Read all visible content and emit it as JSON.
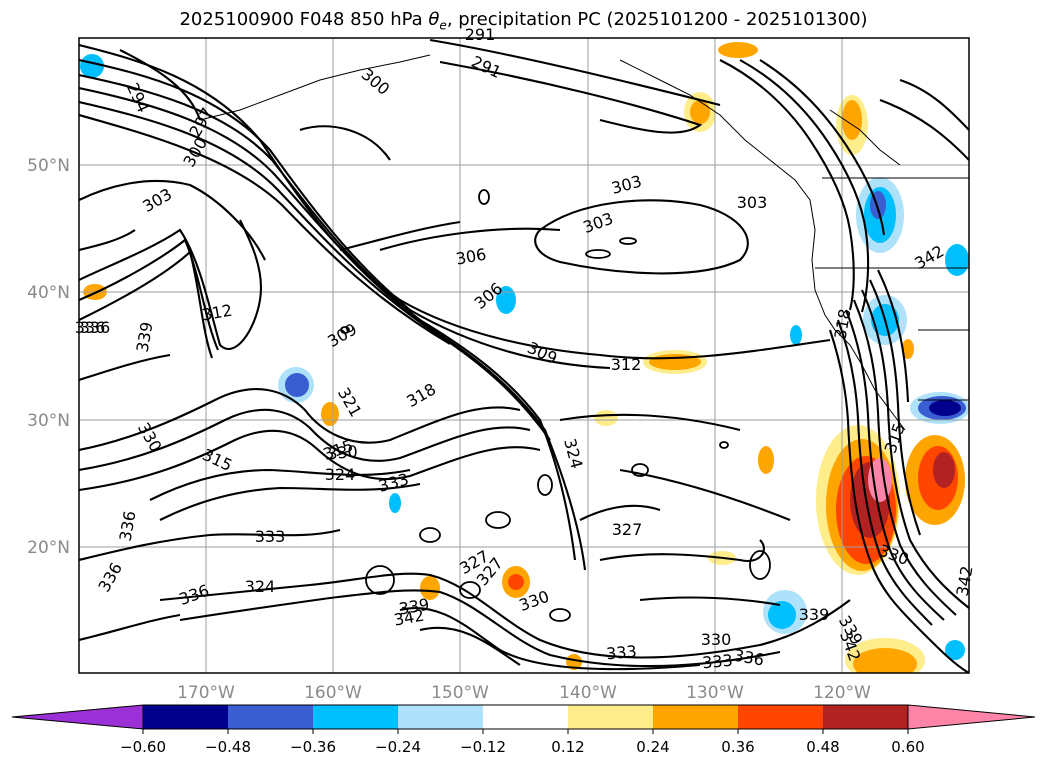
{
  "title": {
    "prefix": "2025100900 F048 850 hPa ",
    "theta": "θ",
    "theta_sub": "e",
    "suffix": ", precipitation PC (2025101200 - 2025101300)"
  },
  "map": {
    "lon_ticks": [
      "170°W",
      "160°W",
      "150°W",
      "140°W",
      "130°W",
      "120°W"
    ],
    "lat_ticks": [
      "50°N",
      "40°N",
      "30°N",
      "20°N"
    ],
    "gridline_color": "#9e9e9e",
    "tick_label_color": "#8a8a8a"
  },
  "contours": {
    "labels": [
      "291",
      "291",
      "294",
      "297",
      "300",
      "300",
      "303",
      "303",
      "303",
      "303",
      "306",
      "306",
      "309",
      "309",
      "312",
      "312",
      "315",
      "315",
      "315",
      "318",
      "318",
      "321",
      "324",
      "324",
      "324",
      "327",
      "327",
      "330",
      "330",
      "330",
      "330",
      "330",
      "333",
      "333",
      "333",
      "333",
      "336",
      "336",
      "336",
      "336",
      "336",
      "339",
      "339",
      "339",
      "342",
      "342",
      "342",
      "342",
      "327",
      "336",
      "339"
    ]
  },
  "colorbar": {
    "ticks": [
      "−0.60",
      "−0.48",
      "−0.36",
      "−0.24",
      "−0.12",
      "0.12",
      "0.24",
      "0.36",
      "0.48",
      "0.60"
    ],
    "colors": [
      "#9b30d6",
      "#00008c",
      "#3a5dd2",
      "#00bfff",
      "#aee1fa",
      "#ffffff",
      "#ffec8b",
      "#ffa500",
      "#ff4500",
      "#b22222",
      "#ff85a8"
    ]
  }
}
